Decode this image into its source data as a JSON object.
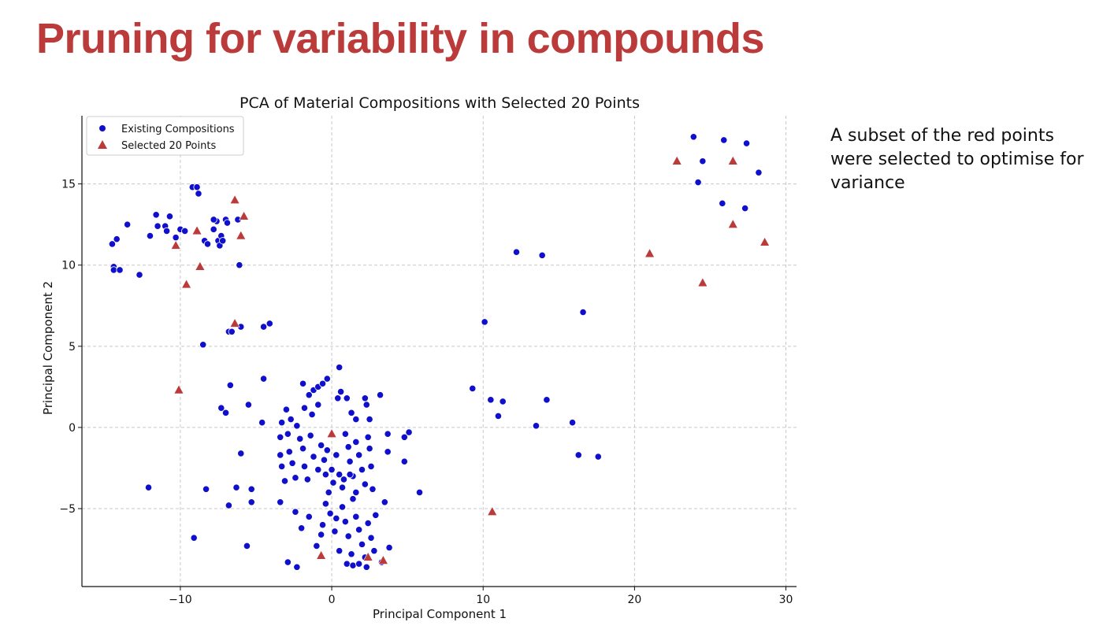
{
  "slide": {
    "title": "Pruning for variability in compounds",
    "note": "A subset of the red points were selected to optimise for variance"
  },
  "colors": {
    "title": "#bb3a3a",
    "existing": "#1010cc",
    "selected": "#bb3a3a",
    "grid": "#c8c8c8"
  },
  "chart_data": {
    "type": "scatter",
    "title": "PCA of Material Compositions with Selected 20 Points",
    "xlabel": "Principal Component 1",
    "ylabel": "Principal Component 2",
    "xlim": [
      -16.5,
      30.7
    ],
    "ylim": [
      -9.8,
      19.2
    ],
    "x_ticks": [
      -10,
      0,
      10,
      20,
      30
    ],
    "y_ticks": [
      -5,
      0,
      5,
      10,
      15
    ],
    "x_tick_labels": [
      "−10",
      "0",
      "10",
      "20",
      "30"
    ],
    "y_tick_labels": [
      "−5",
      "0",
      "5",
      "10",
      "15"
    ],
    "grid": true,
    "legend_position": "top-left",
    "series": [
      {
        "name": "Existing Compositions",
        "marker": "circle",
        "points": [
          [
            -14.5,
            11.3
          ],
          [
            -14.2,
            11.6
          ],
          [
            -14.4,
            9.9
          ],
          [
            -14.4,
            9.7
          ],
          [
            -14.0,
            9.7
          ],
          [
            -13.5,
            12.5
          ],
          [
            -12.7,
            9.4
          ],
          [
            -12.0,
            11.8
          ],
          [
            -11.6,
            13.1
          ],
          [
            -11.5,
            12.4
          ],
          [
            -11.0,
            12.4
          ],
          [
            -10.9,
            12.1
          ],
          [
            -10.7,
            13.0
          ],
          [
            -10.3,
            11.7
          ],
          [
            -10.0,
            12.2
          ],
          [
            -9.7,
            12.1
          ],
          [
            -9.2,
            14.8
          ],
          [
            -8.9,
            14.8
          ],
          [
            -8.8,
            14.4
          ],
          [
            -8.4,
            11.5
          ],
          [
            -8.2,
            11.3
          ],
          [
            -7.8,
            12.2
          ],
          [
            -7.6,
            12.7
          ],
          [
            -7.5,
            11.5
          ],
          [
            -7.3,
            11.8
          ],
          [
            -7.0,
            12.8
          ],
          [
            -6.9,
            12.6
          ],
          [
            -6.2,
            12.8
          ],
          [
            -6.1,
            10.0
          ],
          [
            -7.8,
            12.8
          ],
          [
            -7.4,
            11.2
          ],
          [
            -7.2,
            11.5
          ],
          [
            -8.5,
            5.1
          ],
          [
            -6.8,
            5.9
          ],
          [
            -6.6,
            5.9
          ],
          [
            -6.0,
            6.2
          ],
          [
            -4.5,
            6.2
          ],
          [
            -4.1,
            6.4
          ],
          [
            -6.7,
            2.6
          ],
          [
            -4.5,
            3.0
          ],
          [
            -7.3,
            1.2
          ],
          [
            -7.0,
            0.9
          ],
          [
            -5.5,
            1.4
          ],
          [
            -4.6,
            0.3
          ],
          [
            -6.0,
            -1.6
          ],
          [
            -12.1,
            -3.7
          ],
          [
            -8.3,
            -3.8
          ],
          [
            -6.3,
            -3.7
          ],
          [
            -5.3,
            -3.8
          ],
          [
            -6.8,
            -4.8
          ],
          [
            -5.3,
            -4.6
          ],
          [
            -9.1,
            -6.8
          ],
          [
            -5.6,
            -7.3
          ],
          [
            -2.9,
            -8.3
          ],
          [
            -2.3,
            -8.6
          ],
          [
            -0.7,
            -6.6
          ],
          [
            -3.0,
            1.1
          ],
          [
            -2.7,
            0.5
          ],
          [
            -2.3,
            0.1
          ],
          [
            -1.9,
            2.7
          ],
          [
            -1.8,
            1.2
          ],
          [
            -1.5,
            2.0
          ],
          [
            -1.2,
            2.3
          ],
          [
            -0.9,
            2.5
          ],
          [
            -0.6,
            2.7
          ],
          [
            -0.3,
            3.0
          ],
          [
            0.4,
            1.8
          ],
          [
            0.5,
            3.7
          ],
          [
            0.6,
            2.2
          ],
          [
            1.0,
            1.8
          ],
          [
            1.3,
            0.9
          ],
          [
            1.6,
            0.5
          ],
          [
            2.2,
            1.8
          ],
          [
            2.3,
            1.4
          ],
          [
            2.5,
            0.5
          ],
          [
            3.2,
            2.0
          ],
          [
            -3.3,
            0.3
          ],
          [
            -1.3,
            0.8
          ],
          [
            -0.9,
            1.4
          ],
          [
            -3.4,
            -0.6
          ],
          [
            -3.4,
            -1.7
          ],
          [
            -3.3,
            -2.4
          ],
          [
            -3.1,
            -3.3
          ],
          [
            -2.9,
            -0.4
          ],
          [
            -2.8,
            -1.5
          ],
          [
            -2.6,
            -2.2
          ],
          [
            -2.4,
            -3.1
          ],
          [
            -2.1,
            -0.7
          ],
          [
            -1.9,
            -1.3
          ],
          [
            -1.8,
            -2.4
          ],
          [
            -1.6,
            -3.2
          ],
          [
            -1.4,
            -0.5
          ],
          [
            -1.2,
            -1.8
          ],
          [
            -0.9,
            -2.6
          ],
          [
            -0.7,
            -1.1
          ],
          [
            -0.5,
            -2.0
          ],
          [
            -0.3,
            -1.4
          ],
          [
            0.0,
            -2.6
          ],
          [
            0.1,
            -3.4
          ],
          [
            0.3,
            -1.7
          ],
          [
            0.5,
            -2.9
          ],
          [
            0.7,
            -3.7
          ],
          [
            0.9,
            -0.4
          ],
          [
            1.1,
            -1.2
          ],
          [
            1.2,
            -2.1
          ],
          [
            1.4,
            -3.0
          ],
          [
            1.6,
            -0.9
          ],
          [
            1.8,
            -1.7
          ],
          [
            2.0,
            -2.6
          ],
          [
            2.2,
            -3.5
          ],
          [
            2.4,
            -0.6
          ],
          [
            2.5,
            -1.3
          ],
          [
            2.6,
            -2.4
          ],
          [
            2.7,
            -3.8
          ],
          [
            3.5,
            -4.6
          ],
          [
            3.7,
            -0.4
          ],
          [
            3.7,
            -1.5
          ],
          [
            4.8,
            -0.6
          ],
          [
            5.1,
            -0.3
          ],
          [
            4.8,
            -2.1
          ],
          [
            5.8,
            -4.0
          ],
          [
            -3.4,
            -4.6
          ],
          [
            -2.4,
            -5.2
          ],
          [
            -2.0,
            -6.2
          ],
          [
            -1.5,
            -5.5
          ],
          [
            -1.0,
            -7.3
          ],
          [
            -0.6,
            -6.0
          ],
          [
            -0.4,
            -4.7
          ],
          [
            -0.1,
            -5.3
          ],
          [
            0.2,
            -6.4
          ],
          [
            0.5,
            -7.6
          ],
          [
            0.7,
            -4.9
          ],
          [
            0.9,
            -5.8
          ],
          [
            1.1,
            -6.7
          ],
          [
            1.3,
            -7.8
          ],
          [
            1.4,
            -4.4
          ],
          [
            1.6,
            -5.5
          ],
          [
            1.8,
            -6.3
          ],
          [
            2.0,
            -7.2
          ],
          [
            2.2,
            -8.0
          ],
          [
            2.4,
            -5.9
          ],
          [
            2.6,
            -6.8
          ],
          [
            2.8,
            -7.6
          ],
          [
            1.0,
            -8.4
          ],
          [
            1.4,
            -8.5
          ],
          [
            1.8,
            -8.4
          ],
          [
            2.3,
            -8.6
          ],
          [
            3.3,
            -8.3
          ],
          [
            3.8,
            -7.4
          ],
          [
            -0.4,
            -2.9
          ],
          [
            0.8,
            -3.2
          ],
          [
            1.6,
            -4.0
          ],
          [
            -0.2,
            -4.0
          ],
          [
            2.9,
            -5.4
          ],
          [
            1.2,
            -2.9
          ],
          [
            0.3,
            -5.6
          ],
          [
            9.3,
            2.4
          ],
          [
            10.1,
            6.5
          ],
          [
            10.5,
            1.7
          ],
          [
            11.0,
            0.7
          ],
          [
            11.3,
            1.6
          ],
          [
            12.2,
            10.8
          ],
          [
            13.5,
            0.1
          ],
          [
            13.9,
            10.6
          ],
          [
            14.2,
            1.7
          ],
          [
            15.9,
            0.3
          ],
          [
            16.3,
            -1.7
          ],
          [
            16.6,
            7.1
          ],
          [
            17.6,
            -1.8
          ],
          [
            23.9,
            17.9
          ],
          [
            24.2,
            15.1
          ],
          [
            24.5,
            16.4
          ],
          [
            25.8,
            13.8
          ],
          [
            25.9,
            17.7
          ],
          [
            27.3,
            13.5
          ],
          [
            27.4,
            17.5
          ],
          [
            28.2,
            15.7
          ]
        ]
      },
      {
        "name": "Selected 20 Points",
        "marker": "triangle",
        "points": [
          [
            -10.3,
            11.2
          ],
          [
            -9.6,
            8.8
          ],
          [
            -8.9,
            12.1
          ],
          [
            -8.7,
            9.9
          ],
          [
            -10.1,
            2.3
          ],
          [
            -6.4,
            14.0
          ],
          [
            -5.8,
            13.0
          ],
          [
            -6.0,
            11.8
          ],
          [
            -6.4,
            6.4
          ],
          [
            -0.7,
            -7.9
          ],
          [
            0.0,
            -0.4
          ],
          [
            2.4,
            -8.0
          ],
          [
            3.4,
            -8.2
          ],
          [
            10.6,
            -5.2
          ],
          [
            21.0,
            10.7
          ],
          [
            22.8,
            16.4
          ],
          [
            24.5,
            8.9
          ],
          [
            26.5,
            16.4
          ],
          [
            26.5,
            12.5
          ],
          [
            28.6,
            11.4
          ]
        ]
      }
    ]
  }
}
